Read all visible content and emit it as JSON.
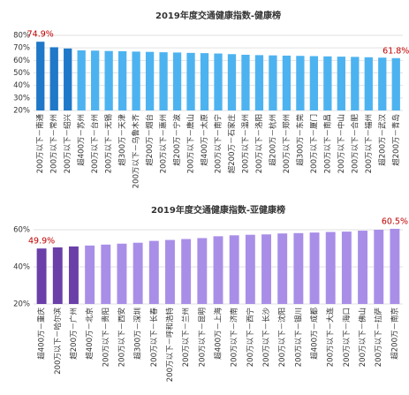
{
  "chart_data": [
    {
      "type": "bar",
      "title": "2019年度交通健康指数-健康榜",
      "categories": [
        "200万以下－南通",
        "200万以下－常州",
        "200万以下－绍兴",
        "超400万－苏州",
        "200万以下－台州",
        "200万以下－无锡",
        "超300万－天津",
        "200万以下－乌鲁木齐",
        "超200万－烟台",
        "200万以下－惠州",
        "超200万－宁波",
        "200万以下－唐山",
        "超400万－太原",
        "200万以下－南宁",
        "超200万－石家庄",
        "200万以下－温州",
        "200万以下－洛阳",
        "超200万－杭州",
        "200万以下－郑州",
        "超300万－东莞",
        "200万以下－厦门",
        "200万以下－南昌",
        "200万以下－中山",
        "200万以下－合肥",
        "200万以下－福州",
        "超200万－武汉",
        "超200万－青岛"
      ],
      "values": [
        74.9,
        70.5,
        69.5,
        68.0,
        67.8,
        67.5,
        67.3,
        67.0,
        66.8,
        66.5,
        66.3,
        66.0,
        65.8,
        65.5,
        65.0,
        64.5,
        64.2,
        64.0,
        63.8,
        63.6,
        63.4,
        63.2,
        63.0,
        62.8,
        62.5,
        62.2,
        61.8
      ],
      "value_labels": [
        "74.9%",
        null,
        null,
        null,
        null,
        null,
        null,
        null,
        null,
        null,
        null,
        null,
        null,
        null,
        null,
        null,
        null,
        null,
        null,
        null,
        null,
        null,
        null,
        null,
        null,
        null,
        "61.8%"
      ],
      "colors": [
        "#1f78c8",
        "#1f78c8",
        "#1f78c8",
        "#4db3f0",
        "#4db3f0",
        "#4db3f0",
        "#4db3f0",
        "#4db3f0",
        "#4db3f0",
        "#4db3f0",
        "#4db3f0",
        "#4db3f0",
        "#4db3f0",
        "#4db3f0",
        "#4db3f0",
        "#4db3f0",
        "#4db3f0",
        "#4db3f0",
        "#4db3f0",
        "#4db3f0",
        "#4db3f0",
        "#4db3f0",
        "#4db3f0",
        "#4db3f0",
        "#4db3f0",
        "#4db3f0",
        "#4db3f0"
      ],
      "ylim": [
        20,
        80
      ],
      "yticks": [
        {
          "value": 20,
          "label": "20%"
        },
        {
          "value": 30,
          "label": "30%"
        },
        {
          "value": 40,
          "label": "40%"
        },
        {
          "value": 50,
          "label": "50%"
        },
        {
          "value": 60,
          "label": "60%"
        },
        {
          "value": 70,
          "label": "70%"
        },
        {
          "value": 80,
          "label": "80%"
        }
      ],
      "grid": true
    },
    {
      "type": "bar",
      "title": "2019年度交通健康指数-亚健康榜",
      "categories": [
        "超400万－重庆",
        "200万以下－哈尔滨",
        "超200万－广州",
        "超400万－北京",
        "200万以下－贵阳",
        "200万以下－西安",
        "超300万－深圳",
        "200万以下－长春",
        "200万以下－呼和浩特",
        "200万以下－兰州",
        "200万以下－昆明",
        "超400万－上海",
        "200万以下－济南",
        "200万以下－西宁",
        "200万以下－长沙",
        "200万以下－沈阳",
        "200万以下－银川",
        "超400万－成都",
        "200万以下－大连",
        "200万以下－海口",
        "200万以下－佛山",
        "200万以下－拉萨",
        "超200万－南京"
      ],
      "values": [
        49.9,
        50.5,
        51.0,
        51.5,
        52.0,
        52.5,
        53.0,
        54.0,
        54.5,
        55.0,
        55.5,
        56.5,
        57.0,
        57.3,
        57.5,
        58.0,
        58.2,
        58.5,
        58.8,
        59.0,
        59.5,
        60.0,
        60.5
      ],
      "value_labels": [
        "49.9%",
        null,
        null,
        null,
        null,
        null,
        null,
        null,
        null,
        null,
        null,
        null,
        null,
        null,
        null,
        null,
        null,
        null,
        null,
        null,
        null,
        null,
        "60.5%"
      ],
      "colors": [
        "#6a3fa8",
        "#6a3fa8",
        "#6a3fa8",
        "#a98ee8",
        "#a98ee8",
        "#a98ee8",
        "#a98ee8",
        "#a98ee8",
        "#a98ee8",
        "#a98ee8",
        "#a98ee8",
        "#a98ee8",
        "#a98ee8",
        "#a98ee8",
        "#a98ee8",
        "#a98ee8",
        "#a98ee8",
        "#a98ee8",
        "#a98ee8",
        "#a98ee8",
        "#a98ee8",
        "#a98ee8",
        "#a98ee8"
      ],
      "ylim": [
        20,
        60
      ],
      "yticks": [
        {
          "value": 20,
          "label": "20%"
        },
        {
          "value": 40,
          "label": "40%"
        },
        {
          "value": 60,
          "label": "60%"
        }
      ],
      "grid": true
    }
  ]
}
